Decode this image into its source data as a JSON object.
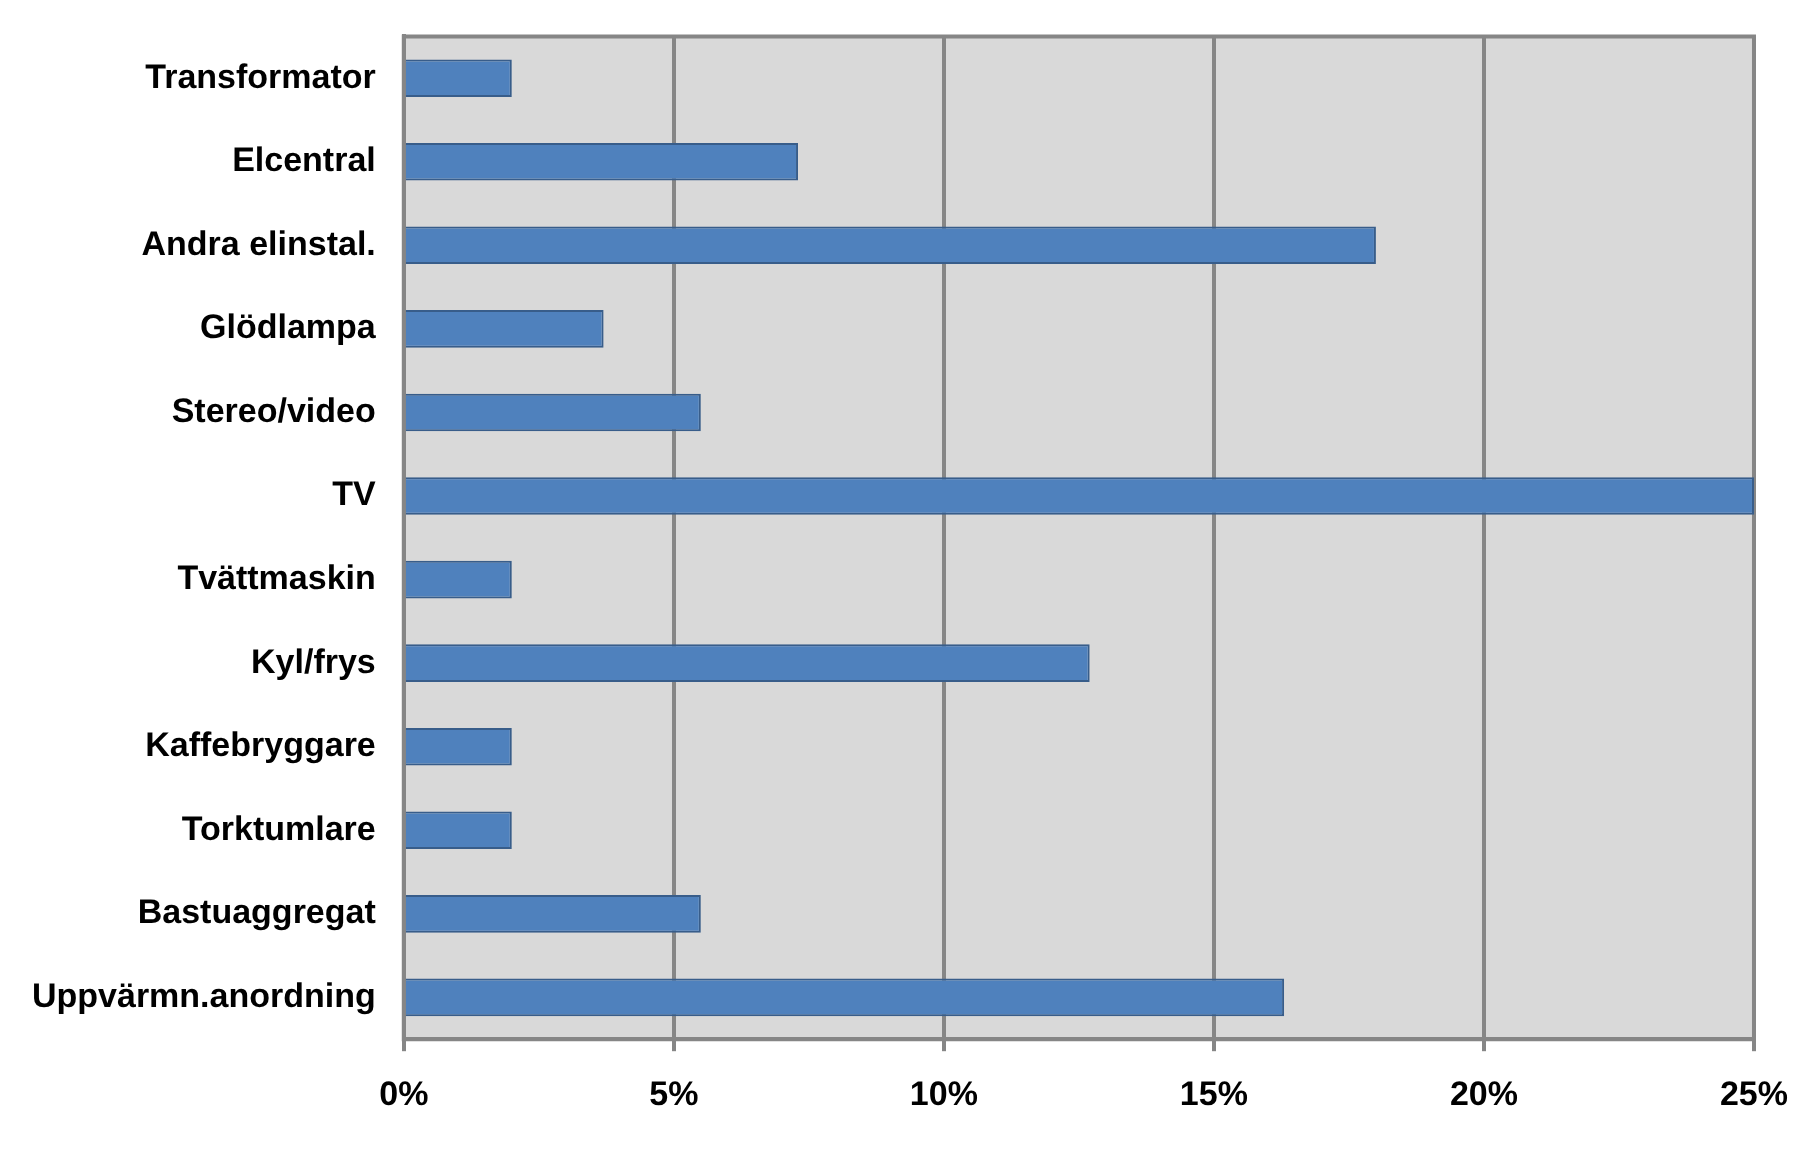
{
  "chart_data": {
    "type": "bar",
    "orientation": "horizontal",
    "categories": [
      "Transformator",
      "Elcentral",
      "Andra elinstal.",
      "Glödlampa",
      "Stereo/video",
      "TV",
      "Tvättmaskin",
      "Kyl/frys",
      "Kaffebryggare",
      "Torktumlare",
      "Bastuaggregat",
      "Uppvärmn.anordning"
    ],
    "values": [
      2,
      7.3,
      18,
      3.7,
      5.5,
      25,
      2,
      12.7,
      2,
      2,
      5.5,
      16.3
    ],
    "color": "#4f81bd",
    "xlim": [
      0,
      25
    ],
    "xticks": [
      {
        "value": 0,
        "label": "0%"
      },
      {
        "value": 5,
        "label": "5%"
      },
      {
        "value": 10,
        "label": "10%"
      },
      {
        "value": 15,
        "label": "15%"
      },
      {
        "value": 20,
        "label": "20%"
      },
      {
        "value": 25,
        "label": "25%"
      }
    ],
    "grid": "x",
    "legend": false
  }
}
